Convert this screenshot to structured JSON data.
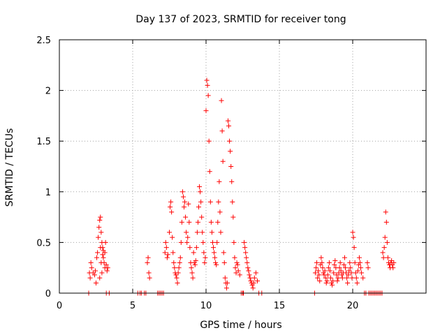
{
  "chart_data": {
    "type": "scatter",
    "title": "Day 137 of 2023, SRMTID for receiver tong",
    "xlabel": "GPS time / hours",
    "ylabel": "SRMTID / TECUs",
    "xlim": [
      0,
      25
    ],
    "ylim": [
      0,
      2.5
    ],
    "x_ticks": [
      0,
      5,
      10,
      15,
      20
    ],
    "x_tick_labels": [
      "0",
      "5",
      "10",
      "15",
      "20"
    ],
    "y_ticks": [
      0,
      0.5,
      1,
      1.5,
      2,
      2.5
    ],
    "y_tick_labels": [
      "0",
      "0.5",
      "1",
      "1.5",
      "2",
      "2.5"
    ],
    "grid": true,
    "marker": "+",
    "marker_color": "#ff0000",
    "series": [
      {
        "name": "SRMTID",
        "x": [
          2.0,
          2.05,
          2.1,
          2.15,
          2.2,
          2.3,
          2.4,
          2.45,
          2.5,
          2.55,
          2.6,
          2.65,
          2.7,
          2.75,
          2.8,
          2.85,
          2.9,
          2.95,
          3.0,
          3.05,
          3.1,
          3.15,
          3.2,
          3.25,
          3.3,
          2.75,
          2.8,
          2.85,
          2.9,
          2.95,
          3.0,
          3.1,
          3.2,
          3.4,
          5.35,
          5.5,
          5.6,
          5.8,
          5.9,
          6.0,
          6.05,
          6.1,
          6.15,
          6.7,
          6.8,
          6.9,
          7.0,
          7.1,
          7.2,
          7.25,
          7.3,
          7.35,
          7.4,
          7.5,
          7.55,
          7.6,
          7.65,
          7.7,
          7.75,
          7.8,
          7.85,
          7.9,
          7.95,
          8.0,
          8.05,
          8.1,
          8.15,
          8.2,
          8.25,
          8.3,
          8.35,
          8.4,
          8.45,
          8.5,
          8.55,
          8.6,
          8.65,
          8.7,
          8.75,
          8.8,
          8.85,
          8.9,
          8.95,
          9.0,
          9.05,
          9.1,
          9.15,
          9.2,
          9.25,
          9.3,
          9.35,
          9.4,
          9.45,
          9.5,
          9.55,
          9.6,
          9.65,
          9.7,
          9.75,
          9.8,
          9.85,
          9.9,
          9.95,
          10.0,
          10.05,
          10.1,
          10.15,
          10.2,
          10.25,
          10.3,
          10.35,
          10.4,
          10.45,
          10.5,
          10.55,
          10.6,
          10.65,
          10.7,
          10.75,
          10.8,
          10.85,
          10.9,
          10.95,
          11.0,
          11.05,
          11.1,
          11.15,
          11.2,
          11.25,
          11.3,
          11.35,
          11.4,
          11.45,
          11.5,
          11.55,
          11.6,
          11.65,
          11.7,
          11.75,
          11.8,
          11.85,
          11.9,
          11.95,
          12.0,
          12.05,
          12.1,
          12.15,
          12.2,
          12.3,
          12.4,
          12.5,
          12.55,
          12.6,
          12.65,
          12.7,
          12.75,
          12.8,
          12.85,
          12.9,
          12.95,
          13.0,
          13.05,
          13.1,
          13.15,
          13.2,
          13.25,
          13.3,
          13.4,
          13.5,
          13.6,
          13.8,
          17.4,
          17.45,
          17.5,
          17.55,
          17.6,
          17.65,
          17.7,
          17.75,
          17.8,
          17.85,
          17.9,
          17.95,
          18.0,
          18.05,
          18.1,
          18.15,
          18.2,
          18.25,
          18.3,
          18.35,
          18.4,
          18.45,
          18.5,
          18.55,
          18.6,
          18.65,
          18.7,
          18.75,
          18.8,
          18.85,
          18.9,
          18.95,
          19.0,
          19.05,
          19.1,
          19.15,
          19.2,
          19.25,
          19.3,
          19.35,
          19.4,
          19.45,
          19.5,
          19.55,
          19.6,
          19.65,
          19.7,
          19.75,
          19.8,
          19.85,
          19.9,
          19.95,
          20.0,
          20.05,
          20.1,
          20.15,
          20.2,
          20.25,
          20.3,
          20.35,
          20.4,
          20.45,
          20.5,
          20.55,
          20.6,
          20.7,
          20.8,
          20.9,
          21.0,
          21.05,
          21.1,
          21.2,
          21.3,
          21.4,
          21.5,
          21.6,
          21.7,
          21.8,
          21.9,
          22.0,
          22.05,
          22.1,
          22.15,
          22.2,
          22.25,
          22.3,
          22.35,
          22.4,
          22.45,
          22.5,
          22.55,
          22.6,
          22.65,
          22.7,
          22.75,
          22.8
        ],
        "y": [
          0.0,
          0.2,
          0.15,
          0.3,
          0.25,
          0.2,
          0.18,
          0.22,
          0.1,
          0.35,
          0.4,
          0.55,
          0.65,
          0.72,
          0.75,
          0.6,
          0.5,
          0.45,
          0.35,
          0.3,
          0.4,
          0.5,
          0.28,
          0.22,
          0.25,
          0.15,
          0.45,
          0.3,
          0.2,
          0.38,
          0.42,
          0.25,
          0.0,
          0.0,
          0.0,
          0.0,
          0.0,
          0.0,
          0.0,
          0.3,
          0.35,
          0.2,
          0.15,
          0.0,
          0.0,
          0.0,
          0.0,
          0.0,
          0.4,
          0.5,
          0.45,
          0.35,
          0.38,
          0.6,
          0.85,
          0.9,
          0.8,
          0.55,
          0.4,
          0.3,
          0.25,
          0.2,
          0.18,
          0.15,
          0.1,
          0.2,
          0.25,
          0.3,
          0.35,
          0.5,
          0.7,
          1.0,
          0.95,
          0.85,
          0.9,
          0.75,
          0.6,
          0.5,
          0.55,
          0.88,
          0.7,
          0.45,
          0.3,
          0.25,
          0.2,
          0.15,
          0.4,
          0.3,
          0.28,
          0.32,
          0.45,
          0.6,
          0.7,
          0.85,
          1.05,
          1.0,
          0.9,
          0.75,
          0.6,
          0.5,
          0.4,
          0.3,
          0.35,
          1.8,
          2.1,
          2.05,
          1.95,
          1.5,
          1.2,
          0.9,
          0.7,
          0.6,
          0.5,
          0.45,
          0.4,
          0.35,
          0.3,
          0.28,
          0.5,
          0.7,
          0.9,
          1.1,
          0.8,
          0.6,
          1.9,
          1.6,
          1.3,
          0.4,
          0.3,
          0.15,
          0.1,
          0.05,
          0.1,
          1.7,
          1.65,
          1.5,
          1.4,
          1.25,
          1.1,
          0.9,
          0.75,
          0.5,
          0.35,
          0.25,
          0.2,
          0.3,
          0.28,
          0.22,
          0.18,
          0.0,
          0.0,
          0.0,
          0.5,
          0.45,
          0.4,
          0.35,
          0.3,
          0.25,
          0.22,
          0.18,
          0.15,
          0.12,
          0.1,
          0.08,
          0.05,
          0.1,
          0.15,
          0.2,
          0.12,
          0.0,
          0.0,
          0.0,
          0.2,
          0.25,
          0.3,
          0.15,
          0.22,
          0.18,
          0.12,
          0.28,
          0.35,
          0.3,
          0.25,
          0.2,
          0.18,
          0.22,
          0.15,
          0.1,
          0.12,
          0.18,
          0.25,
          0.3,
          0.22,
          0.15,
          0.1,
          0.08,
          0.12,
          0.2,
          0.28,
          0.32,
          0.25,
          0.18,
          0.12,
          0.15,
          0.2,
          0.25,
          0.3,
          0.22,
          0.18,
          0.15,
          0.2,
          0.28,
          0.35,
          0.25,
          0.2,
          0.15,
          0.1,
          0.18,
          0.22,
          0.3,
          0.25,
          0.2,
          0.15,
          0.6,
          0.55,
          0.45,
          0.3,
          0.2,
          0.15,
          0.1,
          0.22,
          0.28,
          0.35,
          0.3,
          0.25,
          0.2,
          0.15,
          0.0,
          0.0,
          0.3,
          0.25,
          0.0,
          0.0,
          0.0,
          0.0,
          0.0,
          0.0,
          0.0,
          0.0,
          0.0,
          0.0,
          0.4,
          0.35,
          0.45,
          0.55,
          0.8,
          0.7,
          0.5,
          0.35,
          0.3,
          0.28,
          0.25,
          0.3,
          0.32,
          0.28,
          0.25,
          0.3
        ]
      }
    ]
  }
}
